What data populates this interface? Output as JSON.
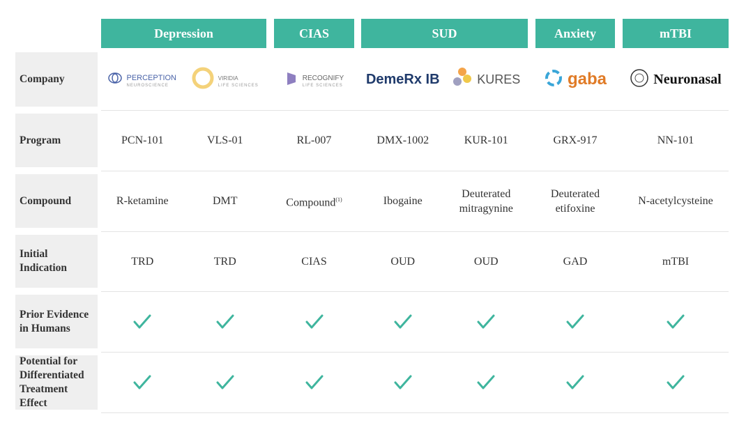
{
  "row_labels": [
    "Company",
    "Program",
    "Compound",
    "Initial Indication",
    "Prior Evidence in Humans",
    "Potential for Differentiated Treatment Effect"
  ],
  "groups": [
    {
      "label": "Depression",
      "columns": [
        {
          "company": {
            "name": "PERCEPTION",
            "sub": "NEUROSCIENCE"
          },
          "program": "PCN-101",
          "compound": "R-ketamine",
          "indication": "TRD"
        },
        {
          "company": {
            "name": "VIRIDIA",
            "sub": "LIFE SCIENCES"
          },
          "program": "VLS-01",
          "compound": "DMT",
          "indication": "TRD"
        }
      ]
    },
    {
      "label": "CIAS",
      "columns": [
        {
          "company": {
            "name": "RECOGNIFY",
            "sub": "LIFE SCIENCES"
          },
          "program": "RL-007",
          "compound": "Compound",
          "compound_note": "(1)",
          "indication": "CIAS"
        }
      ]
    },
    {
      "label": "SUD",
      "columns": [
        {
          "company": {
            "name": "DemeRx IB"
          },
          "program": "DMX-1002",
          "compound": "Ibogaine",
          "indication": "OUD"
        },
        {
          "company": {
            "name": "KURES"
          },
          "program": "KUR-101",
          "compound": "Deuterated mitragynine",
          "indication": "OUD"
        }
      ]
    },
    {
      "label": "Anxiety",
      "columns": [
        {
          "company": {
            "name": "gaba"
          },
          "program": "GRX-917",
          "compound": "Deuterated etifoxine",
          "indication": "GAD"
        }
      ]
    },
    {
      "label": "mTBI",
      "columns": [
        {
          "company": {
            "name": "Neuronasal"
          },
          "program": "NN-101",
          "compound": "N-acetylcysteine",
          "indication": "mTBI"
        }
      ]
    }
  ]
}
